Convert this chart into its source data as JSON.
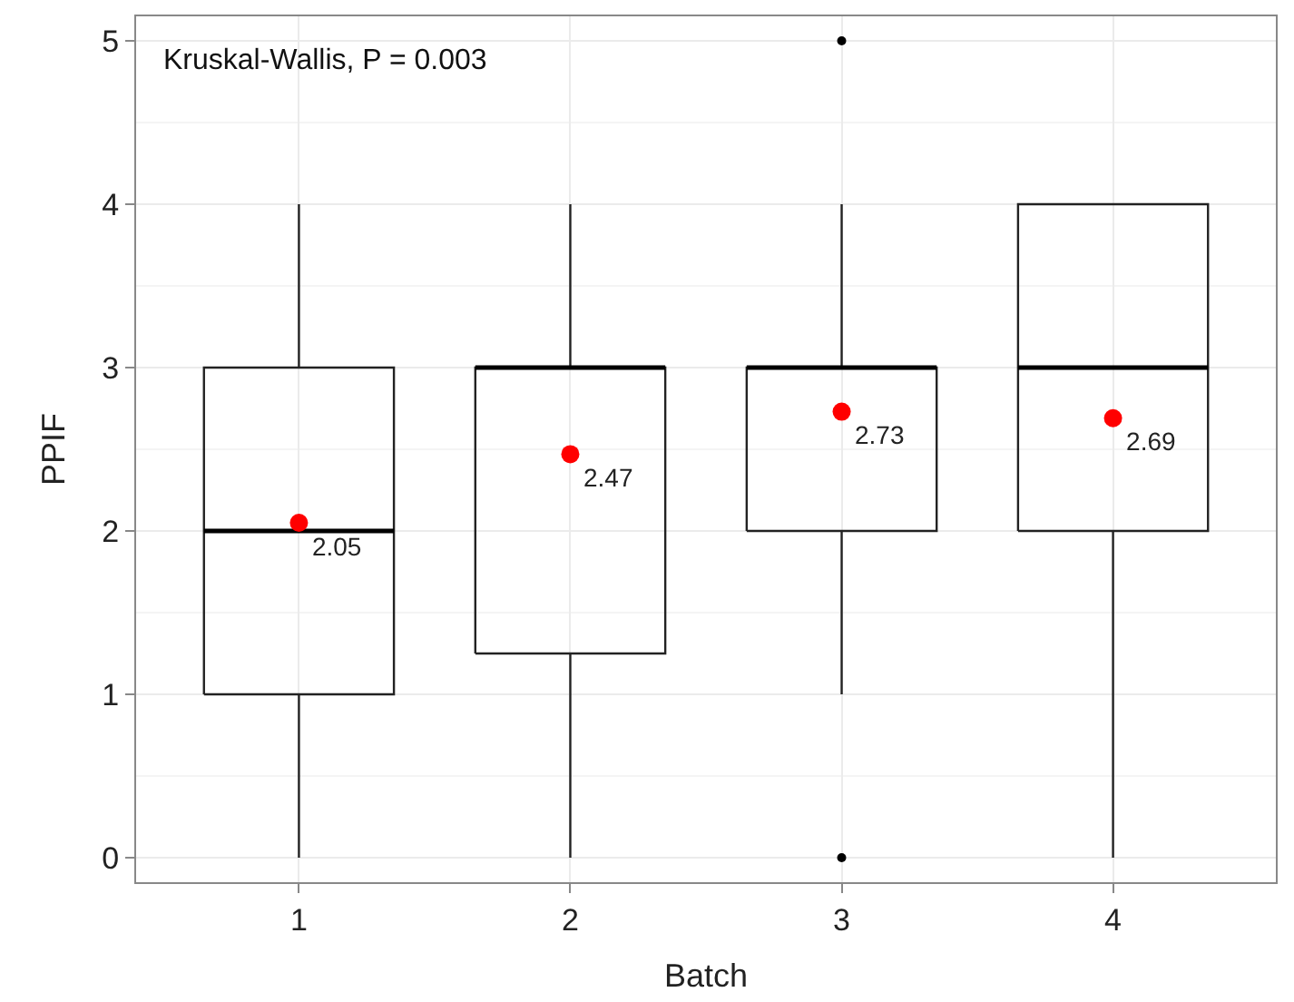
{
  "chart_data": {
    "type": "box",
    "xlabel": "Batch",
    "ylabel": "PPIF",
    "categories": [
      "1",
      "2",
      "3",
      "4"
    ],
    "boxes": [
      {
        "low": 0,
        "q1": 1,
        "median": 2,
        "q3": 3,
        "high": 4
      },
      {
        "low": 0,
        "q1": 1.25,
        "median": 3,
        "q3": 3,
        "high": 4
      },
      {
        "low": 1,
        "q1": 2,
        "median": 3,
        "q3": 3,
        "high": 4,
        "outliers": [
          5,
          0
        ]
      },
      {
        "low": 0,
        "q1": 2,
        "median": 3,
        "q3": 4,
        "high": 4
      }
    ],
    "series": [
      {
        "type": "scatter",
        "color": "#ff0000",
        "x": [
          "1",
          "2",
          "3",
          "4"
        ],
        "values": [
          2.05,
          2.47,
          2.73,
          2.69
        ],
        "value_labels": [
          "2.05",
          "2.47",
          "2.73",
          "2.69"
        ]
      }
    ],
    "annotations": [
      "Kruskal-Wallis, P = 0.003"
    ],
    "ylim": [
      -0.15,
      5.15
    ],
    "yticks": [
      0,
      1,
      2,
      3,
      4,
      5
    ],
    "grid": true,
    "marker": "circle"
  }
}
